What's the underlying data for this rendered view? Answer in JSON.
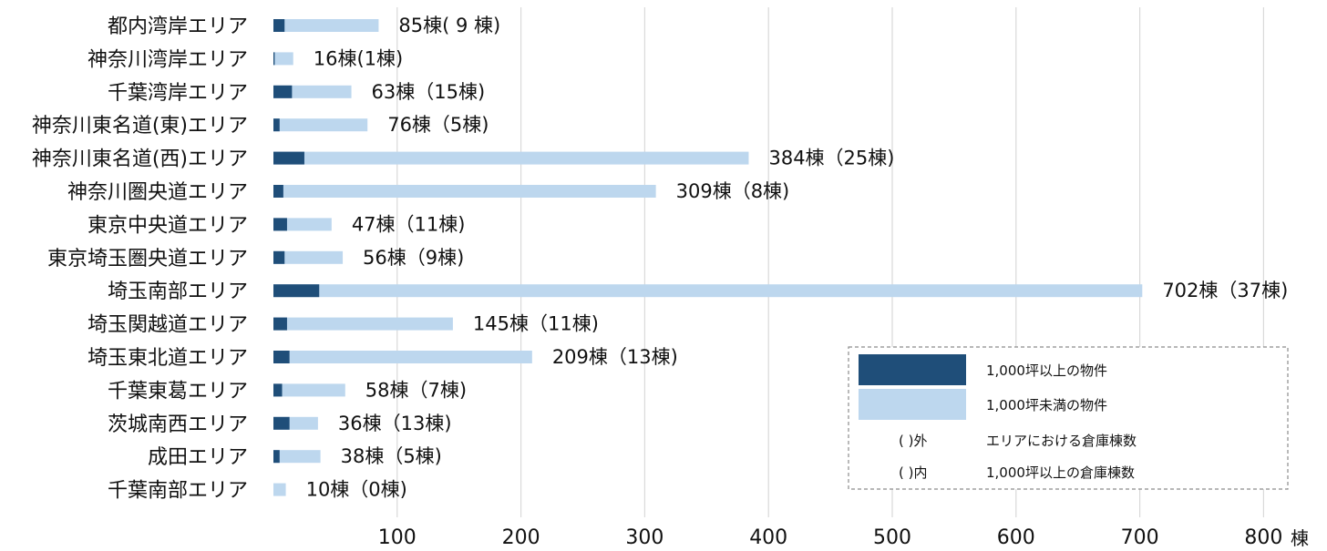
{
  "chart_data": {
    "type": "bar",
    "orientation": "horizontal",
    "stacked": true,
    "categories": [
      "都内湾岸エリア",
      "神奈川湾岸エリア",
      "千葉湾岸エリア",
      "神奈川東名道(東)エリア",
      "神奈川東名道(西)エリア",
      "神奈川圏央道エリア",
      "東京中央道エリア",
      "東京埼玉圏央道エリア",
      "埼玉南部エリア",
      "埼玉関越道エリア",
      "埼玉東北道エリア",
      "千葉東葛エリア",
      "茨城南西エリア",
      "成田エリア",
      "千葉南部エリア"
    ],
    "series": [
      {
        "name": "1,000坪以上の物件",
        "color": "#1f4e79",
        "values": [
          9,
          1,
          15,
          5,
          25,
          8,
          11,
          9,
          37,
          11,
          13,
          7,
          13,
          5,
          0
        ]
      },
      {
        "name": "1,000坪未満の物件",
        "color": "#bdd7ee",
        "values": [
          76,
          15,
          48,
          71,
          359,
          301,
          36,
          47,
          665,
          134,
          196,
          51,
          23,
          33,
          10
        ]
      }
    ],
    "data_labels": [
      "85棟( 9 棟)",
      "16棟(1棟)",
      "63棟（15棟)",
      "76棟（5棟)",
      "384棟（25棟)",
      "309棟（8棟)",
      "47棟（11棟)",
      "56棟（9棟)",
      "702棟（37棟)",
      "145棟（11棟)",
      "209棟（13棟)",
      "58棟（7棟)",
      "36棟（13棟)",
      "38棟（5棟)",
      "10棟（0棟)"
    ],
    "x_ticks": [
      100,
      200,
      300,
      400,
      500,
      600,
      700,
      800
    ],
    "xlim": [
      0,
      800
    ],
    "x_unit": "棟",
    "grid": "vertical",
    "legend": {
      "position": "bottom-right",
      "entries": [
        {
          "key": "1,000坪以上の物件",
          "swatch": "dark"
        },
        {
          "key": "1,000坪未満の物件",
          "swatch": "light"
        },
        {
          "key_text": "( )外",
          "description": "エリアにおける倉庫棟数"
        },
        {
          "key_text": "( )内",
          "description": "1,000坪以上の倉庫棟数"
        }
      ]
    }
  }
}
